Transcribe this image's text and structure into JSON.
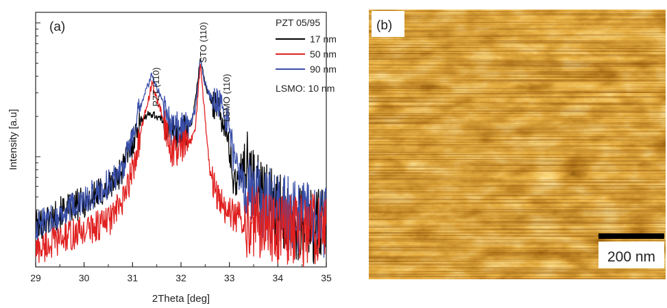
{
  "panel_a": {
    "label": "(a)",
    "peak_labels": [
      "PZT (110)",
      "STO (110)",
      "LSMO (110)"
    ],
    "legend": {
      "title": "PZT 05/95",
      "footer": "LSMO: 10 nm"
    }
  },
  "panel_b": {
    "label": "(b)",
    "scale_bar_label": "200 nm",
    "colors": {
      "dark": "#1a0700",
      "mid": "#c8580c",
      "bright": "#ffe090"
    }
  },
  "chart_data": [
    {
      "type": "line",
      "xlabel": "2Theta [deg]",
      "ylabel": "Intensity [a.u]",
      "xlim": [
        29,
        35
      ],
      "x_ticks": [
        29,
        30,
        31,
        32,
        33,
        34,
        35
      ],
      "yscale": "log",
      "y_tick_labels_shown": false,
      "grid": false,
      "legend_position": "top-right",
      "series": [
        {
          "name": "17 nm",
          "color": "#000000",
          "x": [
            29.0,
            29.5,
            30.0,
            30.5,
            30.8,
            31.0,
            31.2,
            31.4,
            31.6,
            31.8,
            32.0,
            32.2,
            32.3,
            32.4,
            32.5,
            32.6,
            32.8,
            33.0,
            33.1,
            33.3,
            33.6,
            34.0,
            34.5,
            35.0
          ],
          "y": [
            0.3,
            0.38,
            0.46,
            0.58,
            0.82,
            1.3,
            1.95,
            2.1,
            1.9,
            1.55,
            1.5,
            1.7,
            2.6,
            5.6,
            3.4,
            2.75,
            2.25,
            1.15,
            0.6,
            0.95,
            0.55,
            0.4,
            0.3,
            0.3
          ]
        },
        {
          "name": "50 nm",
          "color": "#e02020",
          "x": [
            29.0,
            29.5,
            30.0,
            30.5,
            30.8,
            31.0,
            31.2,
            31.4,
            31.6,
            31.8,
            32.0,
            32.2,
            32.3,
            32.4,
            32.5,
            32.6,
            32.8,
            33.0,
            33.1,
            33.3,
            33.6,
            34.0,
            34.5,
            35.0
          ],
          "y": [
            0.2,
            0.24,
            0.28,
            0.33,
            0.45,
            0.8,
            1.7,
            3.5,
            2.1,
            1.1,
            1.15,
            1.3,
            1.7,
            5.0,
            1.9,
            0.75,
            0.45,
            0.38,
            0.36,
            0.34,
            0.32,
            0.3,
            0.28,
            0.3
          ]
        },
        {
          "name": "90 nm",
          "color": "#3a4fa8",
          "x": [
            29.0,
            29.5,
            30.0,
            30.5,
            30.8,
            31.0,
            31.2,
            31.4,
            31.6,
            31.8,
            32.0,
            32.2,
            32.3,
            32.4,
            32.5,
            32.6,
            32.8,
            33.0,
            33.1,
            33.3,
            33.6,
            34.0,
            34.5,
            35.0
          ],
          "y": [
            0.3,
            0.36,
            0.46,
            0.62,
            0.86,
            1.35,
            2.6,
            4.1,
            2.7,
            1.6,
            1.7,
            1.8,
            2.3,
            5.2,
            3.5,
            2.85,
            2.45,
            1.7,
            0.9,
            0.62,
            0.48,
            0.4,
            0.34,
            0.33
          ]
        }
      ]
    }
  ]
}
